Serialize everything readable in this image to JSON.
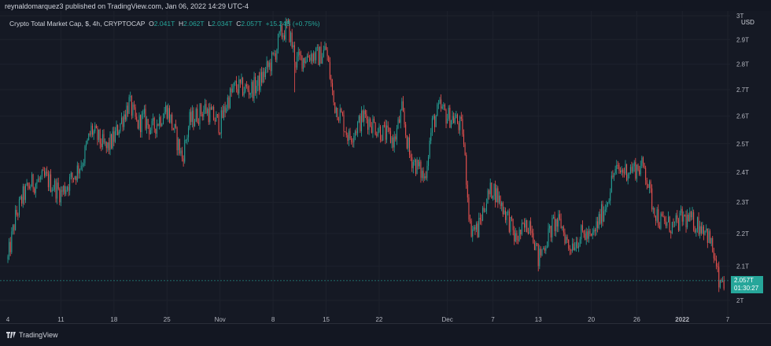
{
  "publish_line": "reynaldomarquez3 published on TradingView.com, Jan 06, 2022 14:29 UTC-4",
  "legend": {
    "symbol": "Crypto Total Market Cap, $, 4h, CRYPTOCAP",
    "o_label": "O",
    "o_value": "2.041T",
    "h_label": "H",
    "h_value": "2.062T",
    "l_label": "L",
    "l_value": "2.034T",
    "c_label": "C",
    "c_value": "2.057T",
    "change": "+15.24B (+0.75%)"
  },
  "price_axis": {
    "currency": "USD",
    "ticks": [
      "3T",
      "2.9T",
      "2.8T",
      "2.7T",
      "2.6T",
      "2.5T",
      "2.4T",
      "2.3T",
      "2.2T",
      "2.1T",
      "2T"
    ]
  },
  "price_tag": {
    "price": "2.057T",
    "countdown": "01:30:27"
  },
  "time_axis": {
    "ticks": [
      "4",
      "11",
      "18",
      "25",
      "Nov",
      "8",
      "15",
      "22",
      "Dec",
      "7",
      "13",
      "20",
      "26",
      "2022",
      "7"
    ]
  },
  "footer": {
    "brand": "TradingView"
  },
  "colors": {
    "up": "#26a69a",
    "down": "#ef5350",
    "background": "#151924",
    "grid": "#1e222d"
  },
  "chart_data": {
    "type": "candlestick",
    "title": "Crypto Total Market Cap, $, 4h, CRYPTOCAP",
    "ylabel": "USD",
    "ylim": [
      1.96,
      3.0
    ],
    "y_scale": "log",
    "grid": true,
    "x_start": "2021-10-04",
    "x_end": "2022-01-07",
    "last": {
      "open": 2.041,
      "high": 2.062,
      "low": 2.034,
      "close": 2.057,
      "change": "+15.24B (+0.75%)"
    },
    "price_path": [
      [
        "2021-10-04",
        2.12
      ],
      [
        "2021-10-05",
        2.25
      ],
      [
        "2021-10-06",
        2.32
      ],
      [
        "2021-10-07",
        2.36
      ],
      [
        "2021-10-09",
        2.38
      ],
      [
        "2021-10-11",
        2.33
      ],
      [
        "2021-10-13",
        2.4
      ],
      [
        "2021-10-14",
        2.45
      ],
      [
        "2021-10-15",
        2.55
      ],
      [
        "2021-10-17",
        2.48
      ],
      [
        "2021-10-18",
        2.52
      ],
      [
        "2021-10-20",
        2.65
      ],
      [
        "2021-10-21",
        2.57
      ],
      [
        "2021-10-22",
        2.59
      ],
      [
        "2021-10-23",
        2.55
      ],
      [
        "2021-10-25",
        2.63
      ],
      [
        "2021-10-27",
        2.45
      ],
      [
        "2021-10-28",
        2.58
      ],
      [
        "2021-10-30",
        2.63
      ],
      [
        "2021-11-01",
        2.57
      ],
      [
        "2021-11-02",
        2.66
      ],
      [
        "2021-11-03",
        2.71
      ],
      [
        "2021-11-05",
        2.7
      ],
      [
        "2021-11-06",
        2.72
      ],
      [
        "2021-11-08",
        2.82
      ],
      [
        "2021-11-09",
        2.92
      ],
      [
        "2021-11-10",
        2.95
      ],
      [
        "2021-11-11",
        2.81
      ],
      [
        "2021-11-13",
        2.84
      ],
      [
        "2021-11-14",
        2.83
      ],
      [
        "2021-11-15",
        2.86
      ],
      [
        "2021-11-16",
        2.65
      ],
      [
        "2021-11-17",
        2.6
      ],
      [
        "2021-11-18",
        2.52
      ],
      [
        "2021-11-20",
        2.6
      ],
      [
        "2021-11-22",
        2.55
      ],
      [
        "2021-11-24",
        2.51
      ],
      [
        "2021-11-25",
        2.62
      ],
      [
        "2021-11-26",
        2.46
      ],
      [
        "2021-11-28",
        2.38
      ],
      [
        "2021-11-29",
        2.57
      ],
      [
        "2021-11-30",
        2.63
      ],
      [
        "2021-12-01",
        2.6
      ],
      [
        "2021-12-02",
        2.59
      ],
      [
        "2021-12-03",
        2.55
      ],
      [
        "2021-12-04",
        2.22
      ],
      [
        "2021-12-05",
        2.21
      ],
      [
        "2021-12-06",
        2.3
      ],
      [
        "2021-12-07",
        2.35
      ],
      [
        "2021-12-09",
        2.25
      ],
      [
        "2021-12-10",
        2.18
      ],
      [
        "2021-12-12",
        2.24
      ],
      [
        "2021-12-13",
        2.12
      ],
      [
        "2021-12-15",
        2.23
      ],
      [
        "2021-12-16",
        2.23
      ],
      [
        "2021-12-17",
        2.16
      ],
      [
        "2021-12-19",
        2.2
      ],
      [
        "2021-12-20",
        2.18
      ],
      [
        "2021-12-22",
        2.3
      ],
      [
        "2021-12-23",
        2.4
      ],
      [
        "2021-12-25",
        2.41
      ],
      [
        "2021-12-27",
        2.42
      ],
      [
        "2021-12-28",
        2.3
      ],
      [
        "2021-12-29",
        2.24
      ],
      [
        "2021-12-31",
        2.22
      ],
      [
        "2022-01-01",
        2.25
      ],
      [
        "2022-01-03",
        2.23
      ],
      [
        "2022-01-04",
        2.22
      ],
      [
        "2022-01-05",
        2.15
      ],
      [
        "2022-01-06",
        2.03
      ],
      [
        "2022-01-06",
        2.057
      ]
    ]
  }
}
